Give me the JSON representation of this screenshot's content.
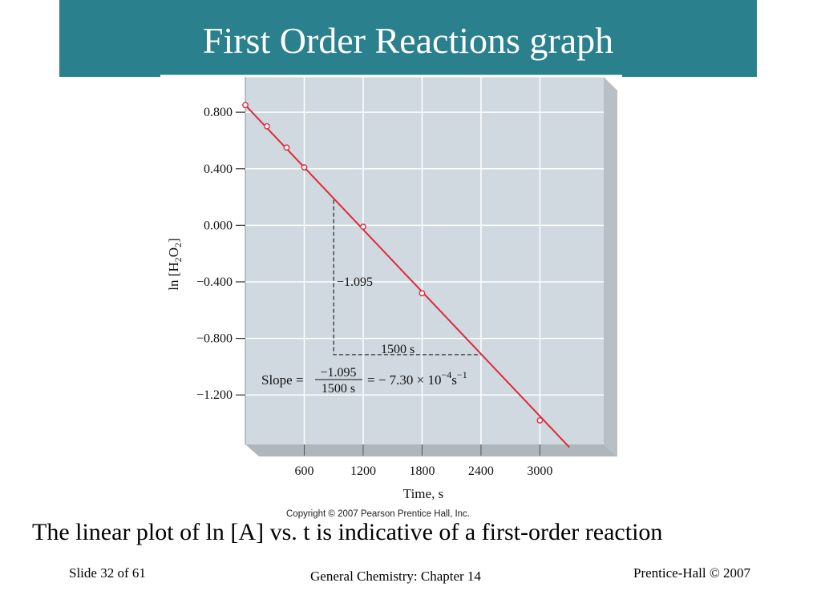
{
  "slide": {
    "title": "First Order Reactions graph",
    "copyright": "Copyright © 2007 Pearson Prentice Hall, Inc.",
    "caption": "The linear plot of ln [A] vs. t is indicative of a first-order reaction",
    "footer_left": "Slide 32 of 61",
    "footer_center": "General Chemistry: Chapter 14",
    "footer_right": "Prentice-Hall © 2007"
  },
  "colors": {
    "title_bar": "#2b808e",
    "plot_background": "#cfd9df",
    "line": "#e0283a",
    "gridline": "#ffffff"
  },
  "chart_data": {
    "type": "line",
    "xlabel": "Time, s",
    "ylabel_main": "ln [H",
    "ylabel_sub1": "2",
    "ylabel_mid": "O",
    "ylabel_sub2": "2",
    "ylabel_end": "]",
    "x_ticks": [
      600,
      1200,
      1800,
      2400,
      3000
    ],
    "x_tick_labels": [
      "600",
      "1200",
      "1800",
      "2400",
      "3000"
    ],
    "y_ticks": [
      0.8,
      0.4,
      0.0,
      -0.4,
      -0.8,
      -1.2
    ],
    "y_tick_labels": [
      "0.800",
      "0.400",
      "0.000",
      "−0.400",
      "−0.800",
      "−1.200"
    ],
    "xlim": [
      0,
      3650
    ],
    "ylim": [
      -1.55,
      1.05
    ],
    "grid": true,
    "series": [
      {
        "x": [
          0,
          220,
          420,
          600,
          1200,
          1800,
          3000
        ],
        "y": [
          0.85,
          0.7,
          0.55,
          0.41,
          -0.01,
          -0.48,
          -1.38
        ]
      }
    ],
    "fit_line": {
      "x": [
        0,
        3300
      ],
      "y": [
        0.85,
        -1.57
      ]
    },
    "annotations": {
      "rise_label": "−1.095",
      "run_label": "1500 s",
      "slope_prefix": "Slope =",
      "slope_numerator": "−1.095",
      "slope_denominator": "1500 s",
      "slope_result": "= − 7.30 × 10",
      "slope_exponent": "−4",
      "slope_unit": "s",
      "slope_unit_exponent": "−1",
      "triangle": {
        "x1": 900,
        "y1": 0.18,
        "x2": 2400,
        "y2": -0.915
      }
    }
  }
}
